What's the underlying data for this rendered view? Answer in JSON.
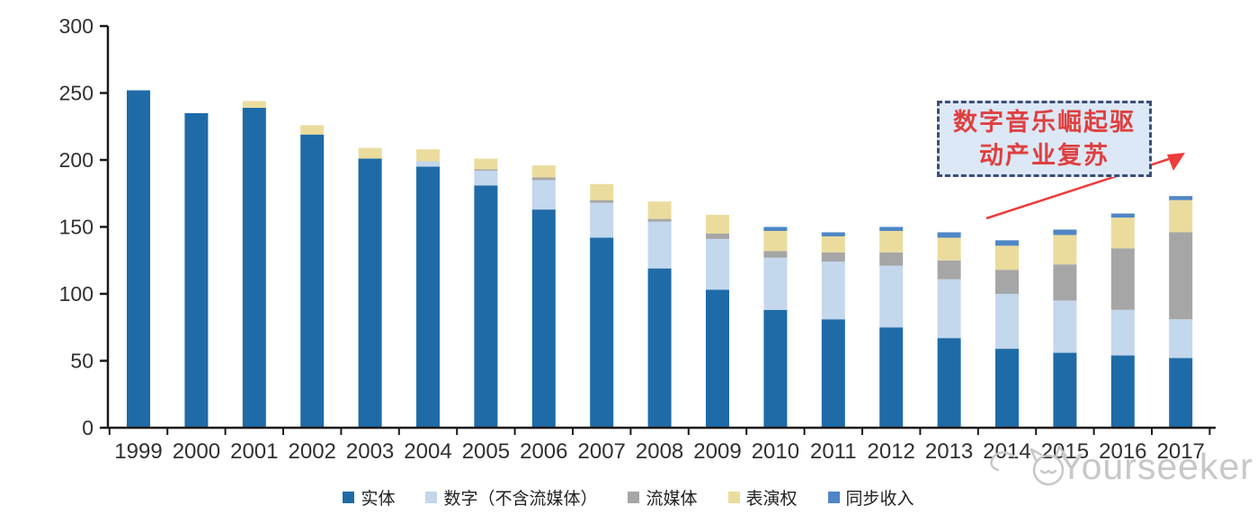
{
  "chart_data": {
    "type": "bar",
    "stacked": true,
    "title": "",
    "xlabel": "",
    "ylabel": "",
    "categories": [
      "1999",
      "2000",
      "2001",
      "2002",
      "2003",
      "2004",
      "2005",
      "2006",
      "2007",
      "2008",
      "2009",
      "2010",
      "2011",
      "2012",
      "2013",
      "2014",
      "2015",
      "2016",
      "2017"
    ],
    "series": [
      {
        "name": "实体",
        "color": "#1F6BA8",
        "values": [
          252,
          235,
          239,
          219,
          201,
          195,
          181,
          163,
          142,
          119,
          103,
          88,
          81,
          75,
          67,
          59,
          56,
          54,
          52
        ]
      },
      {
        "name": "数字（不含流媒体）",
        "color": "#C3D7ED",
        "values": [
          0,
          0,
          0,
          0,
          0,
          4,
          11,
          22,
          26,
          35,
          38,
          39,
          43,
          46,
          44,
          41,
          39,
          34,
          29
        ]
      },
      {
        "name": "流媒体",
        "color": "#A6A6A6",
        "values": [
          0,
          0,
          0,
          0,
          0,
          0,
          1,
          2,
          2,
          2,
          4,
          5,
          7,
          10,
          14,
          18,
          27,
          46,
          65
        ]
      },
      {
        "name": "表演权",
        "color": "#EBDC9E",
        "values": [
          0,
          0,
          5,
          7,
          8,
          9,
          8,
          9,
          12,
          13,
          14,
          15,
          12,
          16,
          17,
          18,
          22,
          23,
          24
        ]
      },
      {
        "name": "同步收入",
        "color": "#4F86C6",
        "values": [
          0,
          0,
          0,
          0,
          0,
          0,
          0,
          0,
          0,
          0,
          0,
          3,
          3,
          3,
          4,
          4,
          4,
          3,
          3
        ]
      }
    ],
    "ylim": [
      0,
      300
    ],
    "yticks": [
      0,
      50,
      100,
      150,
      200,
      250,
      300
    ],
    "grid": false,
    "legend_position": "bottom"
  },
  "annotation": {
    "line1": "数字音乐崛起驱",
    "line2": "动产业复苏",
    "text_color": "#DE4040",
    "box_fill": "#DCE8F6",
    "box_border": "#3B5078"
  },
  "arrow": {
    "color": "#EE3B3B"
  },
  "axis": {
    "line_color": "#1A1A1A",
    "label_color": "#303030"
  },
  "watermark": {
    "text": "Yourseeker",
    "color": "#C8C8C8",
    "logo": "cat-doodle-icon"
  }
}
